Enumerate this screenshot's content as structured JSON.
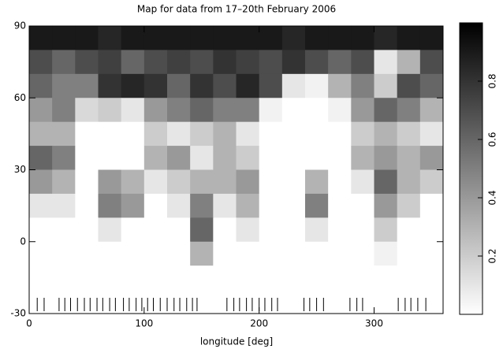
{
  "chart_data": {
    "type": "heatmap",
    "title": "Map for data from 17–20th February 2006",
    "x_label": "longitude [deg]",
    "xlim": [
      0,
      360
    ],
    "xticks": [
      0,
      100,
      200,
      300
    ],
    "ylim": [
      -30,
      90
    ],
    "yticks": [
      -30,
      0,
      30,
      60,
      90
    ],
    "xbins": [
      0,
      20,
      40,
      60,
      80,
      100,
      120,
      140,
      160,
      180,
      200,
      220,
      240,
      260,
      280,
      300,
      320,
      340,
      360
    ],
    "ybins": [
      90,
      80,
      70,
      60,
      50,
      40,
      30,
      20,
      10,
      0,
      -10,
      -20,
      -30
    ],
    "values": [
      [
        0.9,
        0.9,
        0.9,
        0.85,
        0.9,
        0.9,
        0.9,
        0.9,
        0.9,
        0.9,
        0.9,
        0.85,
        0.9,
        0.9,
        0.9,
        0.85,
        0.9,
        0.9
      ],
      [
        0.7,
        0.6,
        0.7,
        0.75,
        0.6,
        0.7,
        0.75,
        0.7,
        0.8,
        0.75,
        0.7,
        0.8,
        0.7,
        0.6,
        0.7,
        0.1,
        0.3,
        0.7
      ],
      [
        0.6,
        0.5,
        0.5,
        0.8,
        0.85,
        0.8,
        0.6,
        0.8,
        0.7,
        0.85,
        0.7,
        0.1,
        0.05,
        0.3,
        0.5,
        0.2,
        0.7,
        0.6
      ],
      [
        0.4,
        0.5,
        0.15,
        0.2,
        0.1,
        0.4,
        0.5,
        0.6,
        0.5,
        0.5,
        0.05,
        0,
        0,
        0.05,
        0.4,
        0.6,
        0.5,
        0.3
      ],
      [
        0.3,
        0.3,
        0,
        0,
        0,
        0.2,
        0.1,
        0.2,
        0.3,
        0.1,
        0,
        0,
        0,
        0,
        0.2,
        0.3,
        0.2,
        0.1
      ],
      [
        0.6,
        0.5,
        0,
        0,
        0,
        0.3,
        0.4,
        0.1,
        0.3,
        0.2,
        0,
        0,
        0,
        0,
        0.3,
        0.4,
        0.3,
        0.4
      ],
      [
        0.4,
        0.3,
        0,
        0.4,
        0.3,
        0.1,
        0.2,
        0.3,
        0.3,
        0.4,
        0,
        0,
        0.3,
        0,
        0.1,
        0.6,
        0.3,
        0.2
      ],
      [
        0.1,
        0.1,
        0,
        0.5,
        0.4,
        0,
        0.1,
        0.5,
        0.1,
        0.3,
        0,
        0,
        0.5,
        0,
        0,
        0.4,
        0.2,
        0
      ],
      [
        0,
        0,
        0,
        0.1,
        0,
        0,
        0,
        0.6,
        0,
        0.1,
        0,
        0,
        0.1,
        0,
        0,
        0.2,
        0,
        0
      ],
      [
        0,
        0,
        0,
        0,
        0,
        0,
        0,
        0.3,
        0,
        0,
        0,
        0,
        0,
        0,
        0,
        0.05,
        0,
        0
      ],
      [
        0,
        0,
        0,
        0,
        0,
        0,
        0,
        0,
        0,
        0,
        0,
        0,
        0,
        0,
        0,
        0,
        0,
        0
      ],
      [
        0,
        0,
        0,
        0,
        0,
        0,
        0,
        0,
        0,
        0,
        0,
        0,
        0,
        0,
        0,
        0,
        0,
        0
      ]
    ],
    "obs_longitudes": [
      7,
      13,
      26,
      31,
      36,
      42,
      48,
      53,
      59,
      64,
      70,
      75,
      82,
      87,
      93,
      98,
      103,
      108,
      114,
      120,
      126,
      131,
      137,
      142,
      146,
      172,
      178,
      183,
      189,
      194,
      200,
      205,
      211,
      216,
      239,
      244,
      250,
      256,
      279,
      285,
      290,
      321,
      327,
      332,
      338,
      345
    ],
    "colorbar": {
      "lim": [
        0,
        1
      ],
      "ticks": [
        0.2,
        0.4,
        0.6,
        0.8
      ]
    }
  }
}
